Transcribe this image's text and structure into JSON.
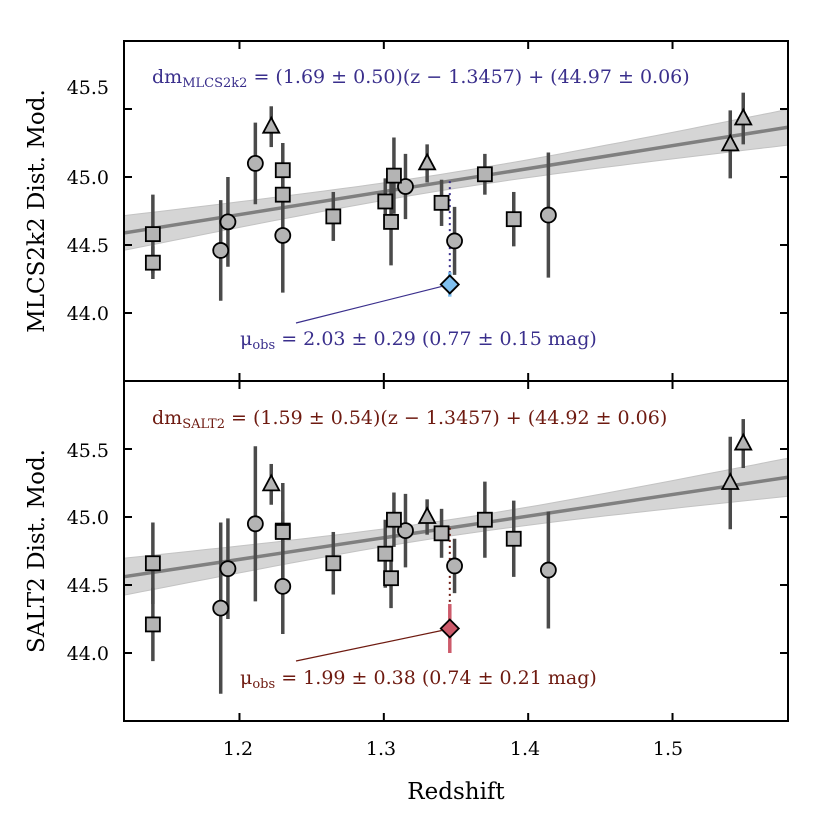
{
  "chart_data": [
    {
      "type": "scatter",
      "panel": "top",
      "ylabel": "MLCS2k2 Dist. Mod.",
      "xlabel": "",
      "xlim": [
        1.12,
        1.58
      ],
      "ylim": [
        43.5,
        45.95
      ],
      "yticks": [
        44.0,
        44.5,
        45.0,
        45.5
      ],
      "fit_label": "dm_MLCS2k2 = (1.69 ± 0.50)(z − 1.3457) + (44.97 ± 0.06)",
      "fit": {
        "slope": 1.69,
        "slope_err": 0.5,
        "z0": 1.3457,
        "intercept": 44.97,
        "intercept_err": 0.06
      },
      "annotation": "μ_obs = 2.03 ± 0.29  (0.77 ± 0.15 mag)",
      "highlight": {
        "name": "lensed SN",
        "marker": "diamond",
        "color": "#7fbfef",
        "x": 1.3457,
        "y": 44.21,
        "err": 0.09,
        "model_y": 44.97
      },
      "series": [
        {
          "name": "circles",
          "marker": "circle",
          "points": [
            {
              "x": 1.187,
              "y": 44.46,
              "err": 0.37
            },
            {
              "x": 1.192,
              "y": 44.67,
              "err": 0.33
            },
            {
              "x": 1.211,
              "y": 45.1,
              "err": 0.3
            },
            {
              "x": 1.23,
              "y": 44.57,
              "err": 0.42
            },
            {
              "x": 1.315,
              "y": 44.93,
              "err": 0.24
            },
            {
              "x": 1.349,
              "y": 44.53,
              "err": 0.25
            },
            {
              "x": 1.414,
              "y": 44.72,
              "err": 0.46
            }
          ]
        },
        {
          "name": "squares",
          "marker": "square",
          "points": [
            {
              "x": 1.14,
              "y": 44.58,
              "err": 0.29
            },
            {
              "x": 1.14,
              "y": 44.37,
              "err": 0.12
            },
            {
              "x": 1.23,
              "y": 45.05,
              "err": 0.2
            },
            {
              "x": 1.23,
              "y": 44.87,
              "err": 0.18
            },
            {
              "x": 1.265,
              "y": 44.71,
              "err": 0.18
            },
            {
              "x": 1.301,
              "y": 44.82,
              "err": 0.17
            },
            {
              "x": 1.305,
              "y": 44.67,
              "err": 0.32
            },
            {
              "x": 1.307,
              "y": 45.01,
              "err": 0.28
            },
            {
              "x": 1.34,
              "y": 44.81,
              "err": 0.17
            },
            {
              "x": 1.37,
              "y": 45.02,
              "err": 0.15
            },
            {
              "x": 1.39,
              "y": 44.69,
              "err": 0.2
            }
          ]
        },
        {
          "name": "triangles",
          "marker": "triangle",
          "points": [
            {
              "x": 1.222,
              "y": 45.37,
              "err": 0.15
            },
            {
              "x": 1.33,
              "y": 45.1,
              "err": 0.14
            },
            {
              "x": 1.54,
              "y": 45.24,
              "err": 0.25
            },
            {
              "x": 1.549,
              "y": 45.43,
              "err": 0.19
            }
          ]
        }
      ]
    },
    {
      "type": "scatter",
      "panel": "bottom",
      "ylabel": "SALT2 Dist. Mod.",
      "xlabel": "Redshift",
      "xlim": [
        1.12,
        1.58
      ],
      "ylim": [
        43.5,
        45.95
      ],
      "yticks": [
        44.0,
        44.5,
        45.0,
        45.5
      ],
      "xticks": [
        1.2,
        1.3,
        1.4,
        1.5
      ],
      "fit_label": "dm_SALT2 = (1.59 ± 0.54)(z − 1.3457) + (44.92 ± 0.06)",
      "fit": {
        "slope": 1.59,
        "slope_err": 0.54,
        "z0": 1.3457,
        "intercept": 44.92,
        "intercept_err": 0.06
      },
      "annotation": "μ_obs = 1.99 ± 0.38  (0.74 ± 0.21 mag)",
      "highlight": {
        "name": "lensed SN",
        "marker": "diamond",
        "color": "#cd5b6b",
        "x": 1.3457,
        "y": 44.18,
        "err": 0.18,
        "model_y": 44.92
      },
      "series": [
        {
          "name": "circles",
          "marker": "circle",
          "points": [
            {
              "x": 1.187,
              "y": 44.33,
              "err": 0.63
            },
            {
              "x": 1.192,
              "y": 44.62,
              "err": 0.37
            },
            {
              "x": 1.211,
              "y": 44.95,
              "err": 0.57
            },
            {
              "x": 1.23,
              "y": 44.49,
              "err": 0.35
            },
            {
              "x": 1.315,
              "y": 44.9,
              "err": 0.27
            },
            {
              "x": 1.349,
              "y": 44.64,
              "err": 0.2
            },
            {
              "x": 1.414,
              "y": 44.61,
              "err": 0.43
            }
          ]
        },
        {
          "name": "squares",
          "marker": "square",
          "points": [
            {
              "x": 1.14,
              "y": 44.66,
              "err": 0.3
            },
            {
              "x": 1.14,
              "y": 44.21,
              "err": 0.27
            },
            {
              "x": 1.23,
              "y": 44.9,
              "err": 0.35
            },
            {
              "x": 1.23,
              "y": 44.89,
              "err": 0.15
            },
            {
              "x": 1.265,
              "y": 44.66,
              "err": 0.23
            },
            {
              "x": 1.301,
              "y": 44.73,
              "err": 0.25
            },
            {
              "x": 1.305,
              "y": 44.55,
              "err": 0.22
            },
            {
              "x": 1.307,
              "y": 44.98,
              "err": 0.2
            },
            {
              "x": 1.34,
              "y": 44.88,
              "err": 0.18
            },
            {
              "x": 1.37,
              "y": 44.98,
              "err": 0.28
            },
            {
              "x": 1.39,
              "y": 44.84,
              "err": 0.28
            }
          ]
        },
        {
          "name": "triangles",
          "marker": "triangle",
          "points": [
            {
              "x": 1.222,
              "y": 45.24,
              "err": 0.15
            },
            {
              "x": 1.33,
              "y": 45.0,
              "err": 0.13
            },
            {
              "x": 1.54,
              "y": 45.25,
              "err": 0.34
            },
            {
              "x": 1.549,
              "y": 45.54,
              "err": 0.18
            }
          ]
        }
      ]
    }
  ],
  "labels": {
    "top_fit_head": "dm",
    "top_fit_sub": "MLCS2k2",
    "top_fit_tail": " = (1.69 ± 0.50)(z − 1.3457) + (44.97 ± 0.06)",
    "top_obs_head": "μ",
    "top_obs_sub": "obs",
    "top_obs_tail": " = 2.03 ± 0.29  (0.77 ± 0.15 mag)",
    "bottom_fit_head": "dm",
    "bottom_fit_sub": "SALT2",
    "bottom_fit_tail": " = (1.59 ± 0.54)(z − 1.3457) + (44.92 ± 0.06)",
    "bottom_obs_head": "μ",
    "bottom_obs_sub": "obs",
    "bottom_obs_tail": " = 1.99 ± 0.38  (0.74 ± 0.21 mag)",
    "top_ylabel": "MLCS2k2 Dist. Mod.",
    "bottom_ylabel": "SALT2 Dist. Mod.",
    "xlabel": "Redshift",
    "ytick_44_0": "44.0",
    "ytick_44_5": "44.5",
    "ytick_45_0": "45.0",
    "ytick_45_5": "45.5",
    "xtick_1_2": "1.2",
    "xtick_1_3": "1.3",
    "xtick_1_4": "1.4",
    "xtick_1_5": "1.5"
  },
  "colors": {
    "top_text": "#3a2f8c",
    "bottom_text": "#6e1a10",
    "fit_line": "#808080",
    "band": "#d3d3d3",
    "marker_fill": "#b4b4b4",
    "errorbar": "#4a4a4a"
  }
}
